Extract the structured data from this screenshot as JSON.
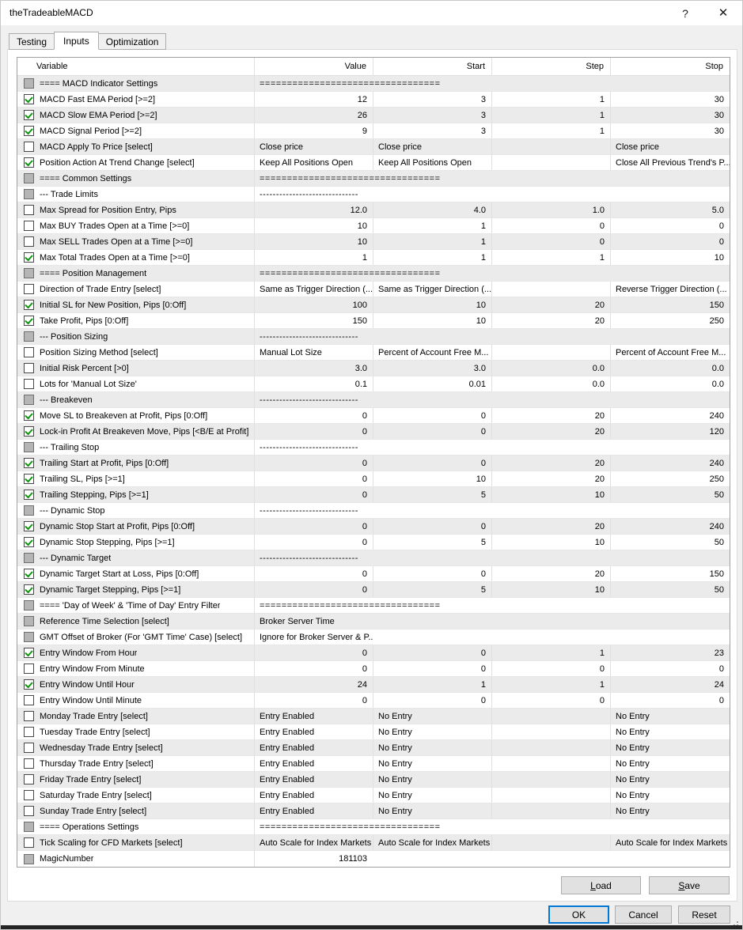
{
  "window": {
    "title": "theTradeableMACD",
    "help_label": "?",
    "close_label": "✕"
  },
  "tabs": [
    {
      "label": "Testing",
      "active": false
    },
    {
      "label": "Inputs",
      "active": true
    },
    {
      "label": "Optimization",
      "active": false
    }
  ],
  "table": {
    "headers": [
      "Variable",
      "Value",
      "Start",
      "Step",
      "Stop"
    ],
    "rows": [
      {
        "check": "disabled",
        "type": "section",
        "label": "==== MACD Indicator Settings",
        "value": "================================="
      },
      {
        "check": "checked",
        "type": "num",
        "label": "MACD Fast EMA Period [>=2]",
        "value": "12",
        "start": "3",
        "step": "1",
        "stop": "30"
      },
      {
        "check": "checked",
        "type": "num",
        "label": "MACD Slow EMA Period [>=2]",
        "value": "26",
        "start": "3",
        "step": "1",
        "stop": "30"
      },
      {
        "check": "checked",
        "type": "num",
        "label": "MACD Signal Period [>=2]",
        "value": "9",
        "start": "3",
        "step": "1",
        "stop": "30"
      },
      {
        "check": "unchecked",
        "type": "select",
        "label": "MACD Apply To Price [select]",
        "value": "Close price",
        "start": "Close price",
        "step": "",
        "stop": "Close price"
      },
      {
        "check": "checked",
        "type": "select",
        "label": "Position Action At Trend Change [select]",
        "value": "Keep All Positions Open",
        "start": "Keep All Positions Open",
        "step": "",
        "stop": "Close All Previous Trend's P..."
      },
      {
        "check": "disabled",
        "type": "section",
        "label": "==== Common Settings",
        "value": "================================="
      },
      {
        "check": "disabled",
        "type": "section",
        "label": "--- Trade Limits",
        "value": "------------------------------"
      },
      {
        "check": "unchecked",
        "type": "num",
        "label": "Max Spread for Position Entry, Pips",
        "value": "12.0",
        "start": "4.0",
        "step": "1.0",
        "stop": "5.0"
      },
      {
        "check": "unchecked",
        "type": "num",
        "label": "Max BUY Trades Open at a Time [>=0]",
        "value": "10",
        "start": "1",
        "step": "0",
        "stop": "0"
      },
      {
        "check": "unchecked",
        "type": "num",
        "label": "Max SELL Trades Open at a Time [>=0]",
        "value": "10",
        "start": "1",
        "step": "0",
        "stop": "0"
      },
      {
        "check": "checked",
        "type": "num",
        "label": "Max Total Trades Open at a Time [>=0]",
        "value": "1",
        "start": "1",
        "step": "1",
        "stop": "10"
      },
      {
        "check": "disabled",
        "type": "section",
        "label": "==== Position Management",
        "value": "================================="
      },
      {
        "check": "unchecked",
        "type": "select",
        "label": "Direction of Trade Entry [select]",
        "value": "Same as Trigger Direction (...",
        "start": "Same as Trigger Direction (...",
        "step": "",
        "stop": "Reverse Trigger Direction (..."
      },
      {
        "check": "checked",
        "type": "num",
        "label": "Initial SL for New Position, Pips [0:Off]",
        "value": "100",
        "start": "10",
        "step": "20",
        "stop": "150"
      },
      {
        "check": "checked",
        "type": "num",
        "label": "Take Profit, Pips [0:Off]",
        "value": "150",
        "start": "10",
        "step": "20",
        "stop": "250"
      },
      {
        "check": "disabled",
        "type": "section",
        "label": "--- Position Sizing",
        "value": "------------------------------"
      },
      {
        "check": "unchecked",
        "type": "select",
        "label": "Position Sizing Method [select]",
        "value": "Manual Lot Size",
        "start": "Percent of Account Free M...",
        "step": "",
        "stop": "Percent of Account Free M..."
      },
      {
        "check": "unchecked",
        "type": "num",
        "label": "Initial Risk Percent [>0]",
        "value": "3.0",
        "start": "3.0",
        "step": "0.0",
        "stop": "0.0"
      },
      {
        "check": "unchecked",
        "type": "num",
        "label": "Lots for 'Manual Lot Size'",
        "value": "0.1",
        "start": "0.01",
        "step": "0.0",
        "stop": "0.0"
      },
      {
        "check": "disabled",
        "type": "section",
        "label": "--- Breakeven",
        "value": "------------------------------"
      },
      {
        "check": "checked",
        "type": "num",
        "label": "Move SL to Breakeven at Profit, Pips [0:Off]",
        "value": "0",
        "start": "0",
        "step": "20",
        "stop": "240"
      },
      {
        "check": "checked",
        "type": "num",
        "label": "Lock-in Profit At Breakeven Move, Pips [<B/E at Profit]",
        "value": "0",
        "start": "0",
        "step": "20",
        "stop": "120"
      },
      {
        "check": "disabled",
        "type": "section",
        "label": "--- Trailing Stop",
        "value": "------------------------------"
      },
      {
        "check": "checked",
        "type": "num",
        "label": "Trailing Start at Profit, Pips [0:Off]",
        "value": "0",
        "start": "0",
        "step": "20",
        "stop": "240"
      },
      {
        "check": "checked",
        "type": "num",
        "label": "Trailing SL, Pips [>=1]",
        "value": "0",
        "start": "10",
        "step": "20",
        "stop": "250"
      },
      {
        "check": "checked",
        "type": "num",
        "label": "Trailing Stepping, Pips [>=1]",
        "value": "0",
        "start": "5",
        "step": "10",
        "stop": "50"
      },
      {
        "check": "disabled",
        "type": "section",
        "label": "--- Dynamic Stop",
        "value": "------------------------------"
      },
      {
        "check": "checked",
        "type": "num",
        "label": "Dynamic Stop Start at Profit, Pips [0:Off]",
        "value": "0",
        "start": "0",
        "step": "20",
        "stop": "240"
      },
      {
        "check": "checked",
        "type": "num",
        "label": "Dynamic Stop Stepping, Pips [>=1]",
        "value": "0",
        "start": "5",
        "step": "10",
        "stop": "50"
      },
      {
        "check": "disabled",
        "type": "section",
        "label": "--- Dynamic Target",
        "value": "------------------------------"
      },
      {
        "check": "checked",
        "type": "num",
        "label": "Dynamic Target Start at Loss, Pips [0:Off]",
        "value": "0",
        "start": "0",
        "step": "20",
        "stop": "150"
      },
      {
        "check": "checked",
        "type": "num",
        "label": "Dynamic Target Stepping, Pips [>=1]",
        "value": "0",
        "start": "5",
        "step": "10",
        "stop": "50"
      },
      {
        "check": "disabled",
        "type": "section",
        "label": "==== 'Day of Week' & 'Time of Day' Entry Filter",
        "value": "================================="
      },
      {
        "check": "disabled",
        "type": "text",
        "label": "Reference Time Selection [select]",
        "value": "Broker Server Time"
      },
      {
        "check": "disabled",
        "type": "text",
        "label": "GMT Offset of Broker (For 'GMT Time' Case) [select]",
        "value": "Ignore for Broker Server & P..."
      },
      {
        "check": "checked",
        "type": "num",
        "label": "Entry Window From Hour",
        "value": "0",
        "start": "0",
        "step": "1",
        "stop": "23"
      },
      {
        "check": "unchecked",
        "type": "num",
        "label": "Entry Window From Minute",
        "value": "0",
        "start": "0",
        "step": "0",
        "stop": "0"
      },
      {
        "check": "checked",
        "type": "num",
        "label": "Entry Window Until Hour",
        "value": "24",
        "start": "1",
        "step": "1",
        "stop": "24"
      },
      {
        "check": "unchecked",
        "type": "num",
        "label": "Entry Window Until Minute",
        "value": "0",
        "start": "0",
        "step": "0",
        "stop": "0"
      },
      {
        "check": "unchecked",
        "type": "select",
        "label": "Monday Trade Entry [select]",
        "value": "Entry Enabled",
        "start": "No Entry",
        "step": "",
        "stop": "No Entry"
      },
      {
        "check": "unchecked",
        "type": "select",
        "label": "Tuesday Trade Entry [select]",
        "value": "Entry Enabled",
        "start": "No Entry",
        "step": "",
        "stop": "No Entry"
      },
      {
        "check": "unchecked",
        "type": "select",
        "label": "Wednesday Trade Entry [select]",
        "value": "Entry Enabled",
        "start": "No Entry",
        "step": "",
        "stop": "No Entry"
      },
      {
        "check": "unchecked",
        "type": "select",
        "label": "Thursday Trade Entry [select]",
        "value": "Entry Enabled",
        "start": "No Entry",
        "step": "",
        "stop": "No Entry"
      },
      {
        "check": "unchecked",
        "type": "select",
        "label": "Friday Trade Entry [select]",
        "value": "Entry Enabled",
        "start": "No Entry",
        "step": "",
        "stop": "No Entry"
      },
      {
        "check": "unchecked",
        "type": "select",
        "label": "Saturday Trade Entry [select]",
        "value": "Entry Enabled",
        "start": "No Entry",
        "step": "",
        "stop": "No Entry"
      },
      {
        "check": "unchecked",
        "type": "select",
        "label": "Sunday Trade Entry [select]",
        "value": "Entry Enabled",
        "start": "No Entry",
        "step": "",
        "stop": "No Entry"
      },
      {
        "check": "disabled",
        "type": "section",
        "label": "==== Operations Settings",
        "value": "================================="
      },
      {
        "check": "unchecked",
        "type": "select",
        "label": "Tick Scaling for CFD Markets [select]",
        "value": "Auto Scale for Index Markets",
        "start": "Auto Scale for Index Markets",
        "step": "",
        "stop": "Auto Scale for Index Markets"
      },
      {
        "check": "disabled",
        "type": "numonly",
        "label": "MagicNumber",
        "value": "181103"
      }
    ]
  },
  "buttons": {
    "load": {
      "mnemonic": "L",
      "rest": "oad"
    },
    "save": {
      "mnemonic": "S",
      "rest": "ave"
    },
    "ok": "OK",
    "cancel": "Cancel",
    "reset": "Reset"
  },
  "colors": {
    "accent": "#0078d7",
    "check_green": "#149114",
    "row_alt": "#ebebeb",
    "grid_line": "#e0e0e0"
  }
}
